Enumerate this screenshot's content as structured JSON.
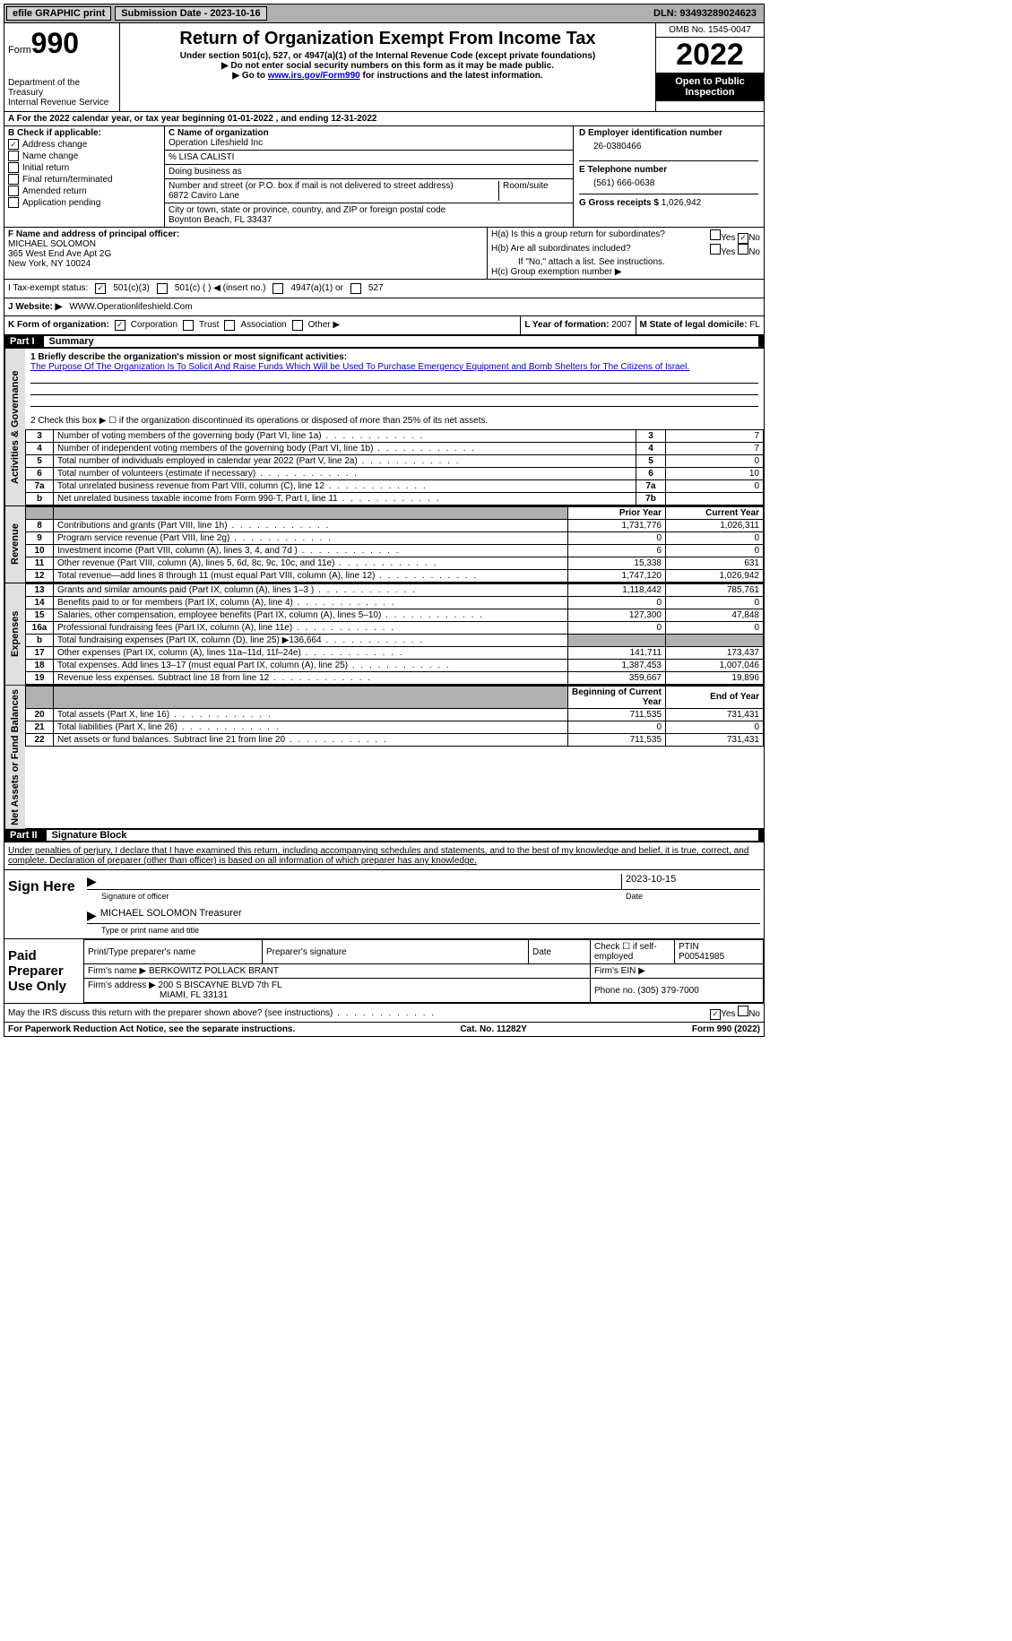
{
  "topbar": {
    "efile": "efile GRAPHIC print",
    "submission": "Submission Date - 2023-10-16",
    "dln": "DLN: 93493289024623"
  },
  "header": {
    "form": "Form",
    "num": "990",
    "dept": "Department of the Treasury\nInternal Revenue Service",
    "title": "Return of Organization Exempt From Income Tax",
    "sub1": "Under section 501(c), 527, or 4947(a)(1) of the Internal Revenue Code (except private foundations)",
    "sub2": "▶ Do not enter social security numbers on this form as it may be made public.",
    "sub3_pre": "▶ Go to ",
    "sub3_link": "www.irs.gov/Form990",
    "sub3_post": " for instructions and the latest information.",
    "omb": "OMB No. 1545-0047",
    "year": "2022",
    "open": "Open to Public Inspection"
  },
  "rowA": "A For the 2022 calendar year, or tax year beginning 01-01-2022     , and ending 12-31-2022",
  "colB": {
    "label": "B Check if applicable:",
    "addr": "Address change",
    "name": "Name change",
    "init": "Initial return",
    "final": "Final return/terminated",
    "amend": "Amended return",
    "app": "Application pending"
  },
  "colC": {
    "label": "C Name of organization",
    "org": "Operation Lifeshield Inc",
    "care": "% LISA CALISTI",
    "dba": "Doing business as",
    "addr_label": "Number and street (or P.O. box if mail is not delivered to street address)",
    "room": "Room/suite",
    "addr": "6872 Caviro Lane",
    "city_label": "City or town, state or province, country, and ZIP or foreign postal code",
    "city": "Boynton Beach, FL  33437"
  },
  "colD": {
    "ein_label": "D Employer identification number",
    "ein": "26-0380466",
    "tel_label": "E Telephone number",
    "tel": "(561) 666-0638",
    "gross_label": "G Gross receipts $",
    "gross": "1,026,942"
  },
  "colF": {
    "label": "F Name and address of principal officer:",
    "name": "MICHAEL SOLOMON",
    "addr1": "365 West End Ave Apt 2G",
    "addr2": "New York, NY  10024"
  },
  "colH": {
    "ha": "H(a)  Is this a group return for subordinates?",
    "hb": "H(b)  Are all subordinates included?",
    "hb_note": "If \"No,\" attach a list. See instructions.",
    "hc": "H(c)  Group exemption number ▶",
    "yes": "Yes",
    "no": "No"
  },
  "rowI": {
    "label": "I   Tax-exempt status:",
    "c3": "501(c)(3)",
    "c": "501(c) (  ) ◀ (insert no.)",
    "a1": "4947(a)(1) or",
    "s527": "527"
  },
  "rowJ": {
    "label": "J   Website: ▶",
    "url": "WWW.Operationlifeshield.Com"
  },
  "rowK": {
    "label": "K Form of organization:",
    "corp": "Corporation",
    "trust": "Trust",
    "assoc": "Association",
    "other": "Other ▶"
  },
  "rowL": {
    "label": "L Year of formation:",
    "val": "2007"
  },
  "rowM": {
    "label": "M State of legal domicile:",
    "val": "FL"
  },
  "part1": {
    "num": "Part I",
    "title": "Summary"
  },
  "sideTabs": {
    "ag": "Activities & Governance",
    "rev": "Revenue",
    "exp": "Expenses",
    "net": "Net Assets or Fund Balances"
  },
  "mission": {
    "l1": "1  Briefly describe the organization's mission or most significant activities:",
    "text": "The Purpose Of The Organization Is To Solicit And Raise Funds Which Will be Used To Purchase Emergency Equipment and Bomb Shelters for The Citizens of Israel."
  },
  "line2": "2   Check this box ▶ ☐  if the organization discontinued its operations or disposed of more than 25% of its net assets.",
  "lines_ag": [
    {
      "n": "3",
      "d": "Number of voting members of the governing body (Part VI, line 1a)",
      "b": "3",
      "v": "7"
    },
    {
      "n": "4",
      "d": "Number of independent voting members of the governing body (Part VI, line 1b)",
      "b": "4",
      "v": "7"
    },
    {
      "n": "5",
      "d": "Total number of individuals employed in calendar year 2022 (Part V, line 2a)",
      "b": "5",
      "v": "0"
    },
    {
      "n": "6",
      "d": "Total number of volunteers (estimate if necessary)",
      "b": "6",
      "v": "10"
    },
    {
      "n": "7a",
      "d": "Total unrelated business revenue from Part VIII, column (C), line 12",
      "b": "7a",
      "v": "0"
    },
    {
      "n": "b",
      "d": "Net unrelated business taxable income from Form 990-T, Part I, line 11",
      "b": "7b",
      "v": ""
    }
  ],
  "twocol_header": {
    "py": "Prior Year",
    "cy": "Current Year"
  },
  "rev_rows": [
    {
      "n": "8",
      "d": "Contributions and grants (Part VIII, line 1h)",
      "py": "1,731,776",
      "cy": "1,026,311"
    },
    {
      "n": "9",
      "d": "Program service revenue (Part VIII, line 2g)",
      "py": "0",
      "cy": "0"
    },
    {
      "n": "10",
      "d": "Investment income (Part VIII, column (A), lines 3, 4, and 7d )",
      "py": "6",
      "cy": "0"
    },
    {
      "n": "11",
      "d": "Other revenue (Part VIII, column (A), lines 5, 6d, 8c, 9c, 10c, and 11e)",
      "py": "15,338",
      "cy": "631"
    },
    {
      "n": "12",
      "d": "Total revenue—add lines 8 through 11 (must equal Part VIII, column (A), line 12)",
      "py": "1,747,120",
      "cy": "1,026,942"
    }
  ],
  "exp_rows": [
    {
      "n": "13",
      "d": "Grants and similar amounts paid (Part IX, column (A), lines 1–3 )",
      "py": "1,118,442",
      "cy": "785,761"
    },
    {
      "n": "14",
      "d": "Benefits paid to or for members (Part IX, column (A), line 4)",
      "py": "0",
      "cy": "0"
    },
    {
      "n": "15",
      "d": "Salaries, other compensation, employee benefits (Part IX, column (A), lines 5–10)",
      "py": "127,300",
      "cy": "47,848"
    },
    {
      "n": "16a",
      "d": "Professional fundraising fees (Part IX, column (A), line 11e)",
      "py": "0",
      "cy": "0"
    },
    {
      "n": "b",
      "d": "Total fundraising expenses (Part IX, column (D), line 25) ▶136,664",
      "py": "",
      "cy": "",
      "gray": true
    },
    {
      "n": "17",
      "d": "Other expenses (Part IX, column (A), lines 11a–11d, 11f–24e)",
      "py": "141,711",
      "cy": "173,437"
    },
    {
      "n": "18",
      "d": "Total expenses. Add lines 13–17 (must equal Part IX, column (A), line 25)",
      "py": "1,387,453",
      "cy": "1,007,046"
    },
    {
      "n": "19",
      "d": "Revenue less expenses. Subtract line 18 from line 12",
      "py": "359,667",
      "cy": "19,896"
    }
  ],
  "net_header": {
    "py": "Beginning of Current Year",
    "cy": "End of Year"
  },
  "net_rows": [
    {
      "n": "20",
      "d": "Total assets (Part X, line 16)",
      "py": "711,535",
      "cy": "731,431"
    },
    {
      "n": "21",
      "d": "Total liabilities (Part X, line 26)",
      "py": "0",
      "cy": "0"
    },
    {
      "n": "22",
      "d": "Net assets or fund balances. Subtract line 21 from line 20",
      "py": "711,535",
      "cy": "731,431"
    }
  ],
  "part2": {
    "num": "Part II",
    "title": "Signature Block"
  },
  "penalties": "Under penalties of perjury, I declare that I have examined this return, including accompanying schedules and statements, and to the best of my knowledge and belief, it is true, correct, and complete. Declaration of preparer (other than officer) is based on all information of which preparer has any knowledge.",
  "sign": {
    "here": "Sign Here",
    "sig_officer": "Signature of officer",
    "date": "Date",
    "sig_date": "2023-10-15",
    "name": "MICHAEL SOLOMON  Treasurer",
    "type_name": "Type or print name and title"
  },
  "prep": {
    "title": "Paid Preparer Use Only",
    "print_name": "Print/Type preparer's name",
    "sig": "Preparer's signature",
    "date": "Date",
    "check": "Check ☐ if self-employed",
    "ptin_l": "PTIN",
    "ptin": "P00541985",
    "firm_name_l": "Firm's name    ▶",
    "firm_name": "BERKOWITZ POLLACK BRANT",
    "firm_ein": "Firm's EIN ▶",
    "firm_addr_l": "Firm's address ▶",
    "firm_addr": "200 S BISCAYNE BLVD 7th FL",
    "firm_city": "MIAMI, FL  33131",
    "phone_l": "Phone no.",
    "phone": "(305) 379-7000"
  },
  "discuss": "May the IRS discuss this return with the preparer shown above? (see instructions)",
  "footer": {
    "pra": "For Paperwork Reduction Act Notice, see the separate instructions.",
    "cat": "Cat. No. 11282Y",
    "form": "Form 990 (2022)"
  }
}
